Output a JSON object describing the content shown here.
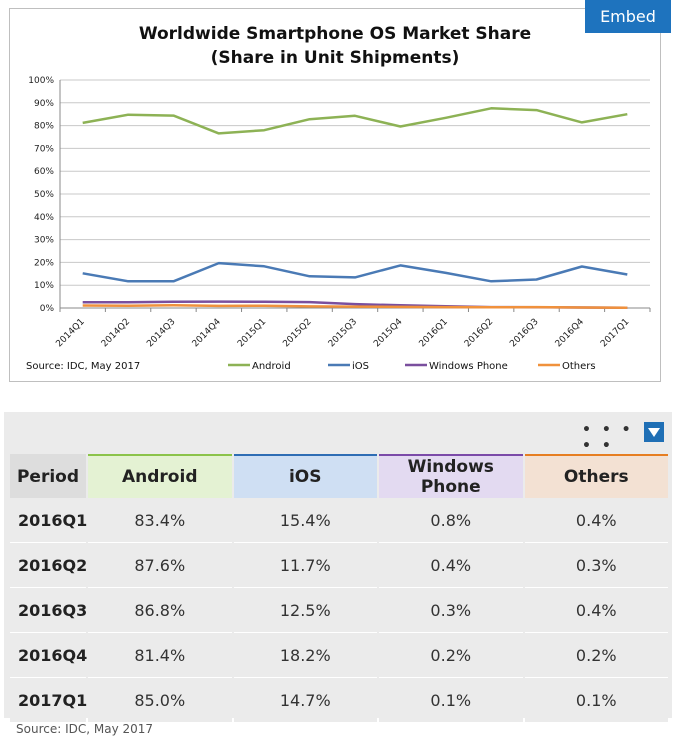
{
  "embed": {
    "label": "Embed"
  },
  "chart_data": {
    "type": "line",
    "title": "Worldwide Smartphone OS Market Share",
    "subtitle": "(Share in Unit Shipments)",
    "xlabel": "",
    "ylabel": "",
    "categories": [
      "2014Q1",
      "2014Q2",
      "2014Q3",
      "2014Q4",
      "2015Q1",
      "2015Q2",
      "2015Q3",
      "2015Q4",
      "2016Q1",
      "2016Q2",
      "2016Q3",
      "2016Q4",
      "2017Q1"
    ],
    "y_ticks": [
      "0%",
      "10%",
      "20%",
      "30%",
      "40%",
      "50%",
      "60%",
      "70%",
      "80%",
      "90%",
      "100%"
    ],
    "ylim": [
      0,
      100
    ],
    "grid": true,
    "legend_position": "bottom",
    "series": [
      {
        "name": "Android",
        "color": "#8db255",
        "values": [
          81.2,
          84.8,
          84.4,
          76.6,
          78.0,
          82.8,
          84.3,
          79.6,
          83.4,
          87.6,
          86.8,
          81.4,
          85.0
        ]
      },
      {
        "name": "iOS",
        "color": "#4a7ab5",
        "values": [
          15.2,
          11.7,
          11.7,
          19.7,
          18.3,
          13.9,
          13.4,
          18.7,
          15.4,
          11.7,
          12.5,
          18.2,
          14.7
        ]
      },
      {
        "name": "Windows Phone",
        "color": "#7a4f9e",
        "values": [
          2.5,
          2.5,
          2.7,
          2.8,
          2.7,
          2.6,
          1.7,
          1.2,
          0.8,
          0.4,
          0.3,
          0.2,
          0.1
        ]
      },
      {
        "name": "Others",
        "color": "#f0913c",
        "values": [
          1.1,
          1.0,
          1.2,
          0.9,
          1.0,
          0.7,
          0.6,
          0.5,
          0.4,
          0.3,
          0.4,
          0.2,
          0.1
        ]
      }
    ],
    "source": "Source: IDC, May 2017"
  },
  "table": {
    "headers": [
      "Period",
      "Android",
      "iOS",
      "Windows Phone",
      "Others"
    ],
    "rows": [
      [
        "2016Q1",
        "83.4%",
        "15.4%",
        "0.8%",
        "0.4%"
      ],
      [
        "2016Q2",
        "87.6%",
        "11.7%",
        "0.4%",
        "0.3%"
      ],
      [
        "2016Q3",
        "86.8%",
        "12.5%",
        "0.3%",
        "0.4%"
      ],
      [
        "2016Q4",
        "81.4%",
        "18.2%",
        "0.2%",
        "0.2%"
      ],
      [
        "2017Q1",
        "85.0%",
        "14.7%",
        "0.1%",
        "0.1%"
      ]
    ],
    "more_label": "• • • • •",
    "source": "Source: IDC, May 2017"
  }
}
